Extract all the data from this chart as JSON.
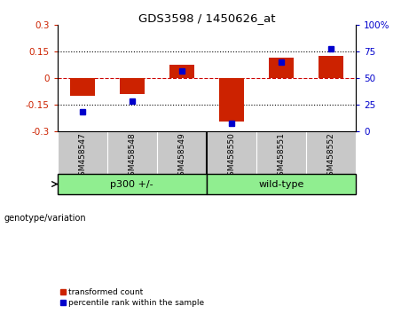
{
  "title": "GDS3598 / 1450626_at",
  "samples": [
    "GSM458547",
    "GSM458548",
    "GSM458549",
    "GSM458550",
    "GSM458551",
    "GSM458552"
  ],
  "red_values": [
    -0.1,
    -0.09,
    0.075,
    -0.245,
    0.115,
    0.125
  ],
  "blue_values_pct": [
    18,
    28,
    57,
    7,
    65,
    78
  ],
  "group_p300_label": "p300 +/-",
  "group_wt_label": "wild-type",
  "group_color": "#90EE90",
  "group_border_color": "#000000",
  "ylim_left": [
    -0.3,
    0.3
  ],
  "ylim_right": [
    0,
    100
  ],
  "left_yticks": [
    -0.3,
    -0.15,
    0,
    0.15,
    0.3
  ],
  "right_yticks": [
    0,
    25,
    50,
    75,
    100
  ],
  "left_ytick_labels": [
    "-0.3",
    "-0.15",
    "0",
    "0.15",
    "0.3"
  ],
  "right_ytick_labels": [
    "0",
    "25",
    "50",
    "75",
    "100%"
  ],
  "bar_color_red": "#CC2200",
  "bar_color_blue": "#0000CC",
  "zero_line_color": "#CC0000",
  "dotted_line_color": "#000000",
  "background_plot": "#FFFFFF",
  "background_xtick": "#C8C8C8",
  "legend_red_label": "transformed count",
  "legend_blue_label": "percentile rank within the sample",
  "genotype_label": "genotype/variation"
}
